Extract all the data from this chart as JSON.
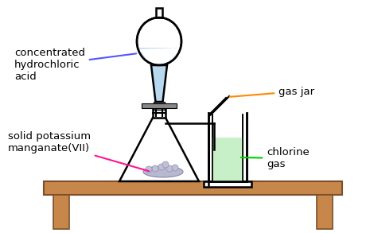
{
  "bg_color": "#ffffff",
  "line_color": "#000000",
  "table_color": "#c8874a",
  "table_edge_color": "#7a4f2a",
  "liquid_hcl_color": "#b8d8f0",
  "liquid_cl2_color": "#c8f0c8",
  "solid_color": "#b8b8d0",
  "stopcock_color": "#888888",
  "labels": {
    "hcl": "concentrated\nhydrochloric\nacid",
    "solid": "solid potassium\nmanganate(VII)",
    "gas_jar": "gas jar",
    "chlorine": "chlorine\ngas"
  },
  "arrow_colors": {
    "hcl": "#5555ff",
    "solid": "#ff1493",
    "gas_jar": "#ff8800",
    "chlorine": "#00cc00"
  },
  "figsize": [
    4.65,
    2.93
  ],
  "dpi": 100
}
